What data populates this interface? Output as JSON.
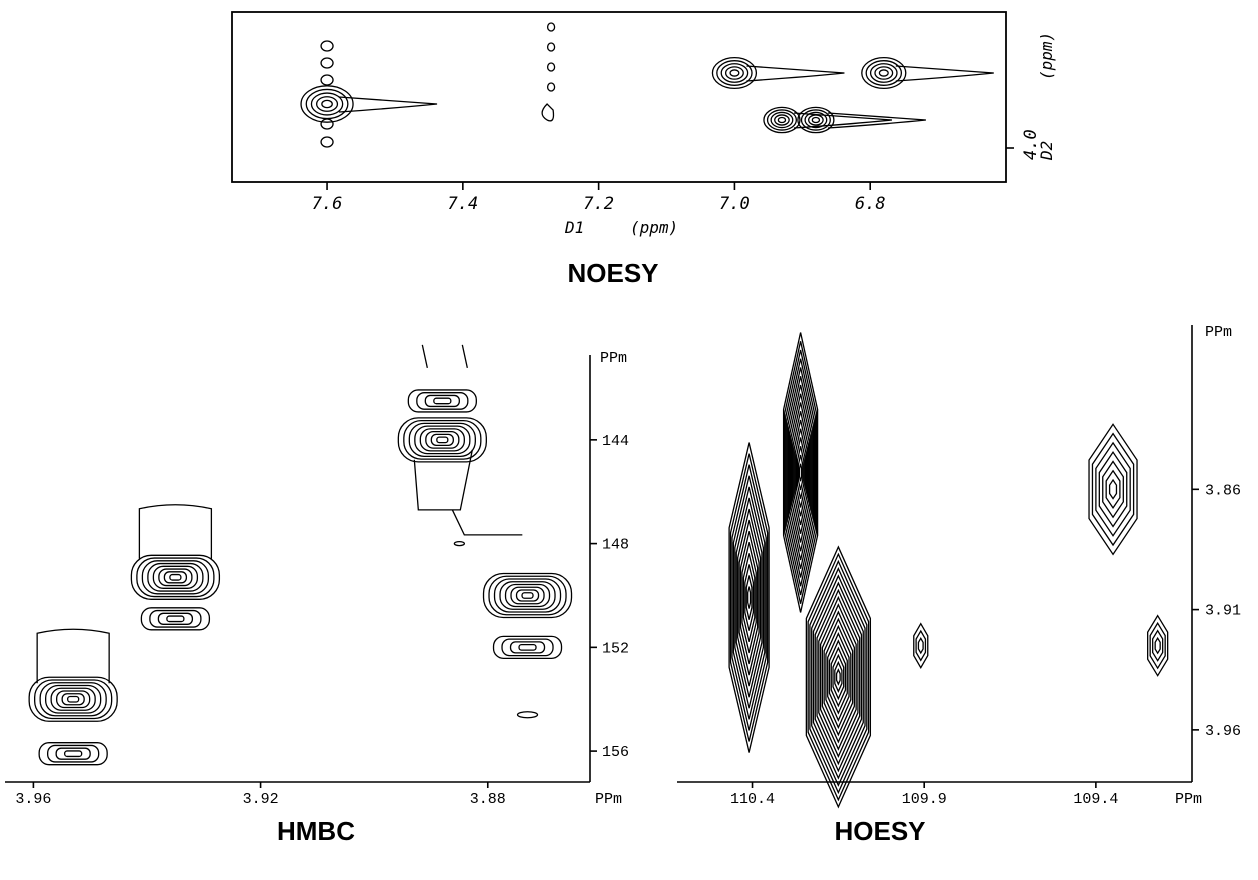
{
  "chart_data": [
    {
      "type": "contour",
      "title": "NOESY",
      "x_axis": {
        "label": "D1",
        "unit": "(ppm)",
        "ticks": [
          "7.6",
          "7.4",
          "7.2",
          "7.0",
          "6.8"
        ],
        "range": [
          7.74,
          6.6
        ],
        "reversed": true
      },
      "y_axis": {
        "label": "D2",
        "unit": "(ppm)",
        "ticks": [
          "4.0"
        ]
      },
      "cross_peaks": [
        {
          "x": 7.6,
          "size": 1.3
        },
        {
          "x": 7.0,
          "size": 1.1
        },
        {
          "x": 6.93,
          "size": 0.9
        },
        {
          "x": 6.88,
          "size": 0.9
        },
        {
          "x": 6.78,
          "size": 1.1
        }
      ]
    },
    {
      "type": "contour",
      "title": "HMBC",
      "x_axis": {
        "unit": "PPm",
        "ticks": [
          "3.96",
          "3.92",
          "3.88"
        ],
        "range": [
          3.965,
          3.862
        ],
        "reversed": true
      },
      "y_axis": {
        "unit": "PPm",
        "ticks": [
          "144",
          "148",
          "152",
          "156"
        ],
        "range": [
          141.5,
          157.5
        ]
      },
      "cross_peaks": [
        {
          "x": 3.953,
          "y": 154.0
        },
        {
          "x": 3.953,
          "y": 156.1
        },
        {
          "x": 3.935,
          "y": 149.3
        },
        {
          "x": 3.935,
          "y": 150.9
        },
        {
          "x": 3.888,
          "y": 144.0
        },
        {
          "x": 3.888,
          "y": 142.5
        },
        {
          "x": 3.873,
          "y": 150.0
        },
        {
          "x": 3.873,
          "y": 152.0
        }
      ]
    },
    {
      "type": "contour",
      "title": "HOESY",
      "x_axis": {
        "unit": "PPm",
        "ticks": [
          "110.4",
          "109.9",
          "109.4"
        ],
        "range": [
          110.62,
          109.12
        ],
        "reversed": true
      },
      "y_axis": {
        "unit": "PPm",
        "ticks": [
          "3.86",
          "3.91",
          "3.96"
        ],
        "range": [
          3.8,
          3.985
        ]
      },
      "cross_peaks": [
        {
          "x": 110.41,
          "y": 3.905
        },
        {
          "x": 110.26,
          "y": 3.853
        },
        {
          "x": 110.15,
          "y": 3.938
        },
        {
          "x": 109.91,
          "y": 3.925
        },
        {
          "x": 109.35,
          "y": 3.86
        },
        {
          "x": 109.22,
          "y": 3.925
        }
      ]
    }
  ]
}
